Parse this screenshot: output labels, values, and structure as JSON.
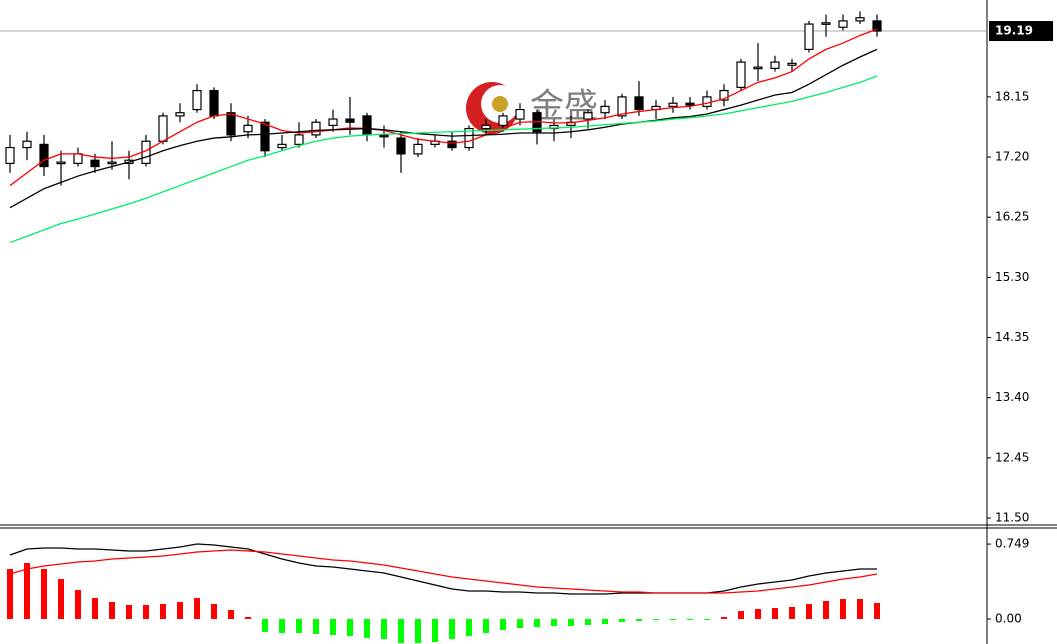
{
  "chart_data": [
    {
      "type": "candlestick",
      "watermark": "金盛",
      "last_price": 19.19,
      "up_color": "#ffffff",
      "down_color": "#000000",
      "open": [
        17.1,
        17.35,
        17.4,
        17.1,
        17.1,
        17.15,
        17.1,
        17.1,
        17.1,
        17.45,
        17.85,
        17.95,
        18.25,
        17.9,
        17.6,
        17.75,
        17.35,
        17.4,
        17.55,
        17.7,
        17.8,
        17.85,
        17.55,
        17.5,
        17.25,
        17.4,
        17.45,
        17.35,
        17.65,
        17.7,
        17.8,
        17.9,
        17.65,
        17.7,
        17.8,
        17.9,
        17.85,
        18.15,
        17.95,
        18.0,
        18.05,
        18.0,
        18.1,
        18.3,
        18.6,
        18.6,
        18.65,
        18.9,
        19.3,
        19.25,
        19.35,
        19.35
      ],
      "high": [
        17.55,
        17.6,
        17.55,
        17.3,
        17.35,
        17.25,
        17.45,
        17.3,
        17.55,
        17.9,
        18.05,
        18.35,
        18.3,
        18.05,
        17.85,
        17.8,
        17.55,
        17.75,
        17.8,
        17.95,
        18.15,
        17.9,
        17.7,
        17.6,
        17.5,
        17.55,
        17.6,
        17.7,
        17.8,
        17.9,
        18.05,
        17.95,
        17.8,
        17.85,
        17.95,
        18.1,
        18.2,
        18.4,
        18.1,
        18.15,
        18.15,
        18.25,
        18.35,
        18.75,
        19.0,
        18.8,
        18.75,
        19.35,
        19.45,
        19.45,
        19.5,
        19.45
      ],
      "low": [
        16.95,
        17.15,
        16.9,
        16.75,
        17.05,
        16.95,
        17.0,
        16.85,
        17.05,
        17.4,
        17.75,
        17.9,
        17.8,
        17.45,
        17.5,
        17.2,
        17.3,
        17.35,
        17.5,
        17.6,
        17.55,
        17.45,
        17.35,
        16.95,
        17.2,
        17.35,
        17.3,
        17.3,
        17.55,
        17.6,
        17.7,
        17.4,
        17.45,
        17.5,
        17.65,
        17.8,
        17.8,
        17.85,
        17.8,
        17.9,
        17.95,
        17.95,
        18.0,
        18.25,
        18.4,
        18.55,
        18.55,
        18.85,
        19.1,
        19.2,
        19.3,
        19.1
      ],
      "close": [
        17.35,
        17.45,
        17.05,
        17.12,
        17.25,
        17.05,
        17.12,
        17.15,
        17.45,
        17.85,
        17.9,
        18.25,
        17.85,
        17.55,
        17.7,
        17.3,
        17.4,
        17.55,
        17.75,
        17.8,
        17.75,
        17.55,
        17.52,
        17.25,
        17.4,
        17.45,
        17.35,
        17.65,
        17.7,
        17.85,
        17.95,
        17.6,
        17.7,
        17.75,
        17.9,
        18.0,
        18.15,
        17.95,
        18.0,
        18.05,
        18.02,
        18.15,
        18.25,
        18.7,
        18.62,
        18.7,
        18.68,
        19.3,
        19.32,
        19.35,
        19.4,
        19.19
      ],
      "series": [
        {
          "color": "#ff0000",
          "values": [
            16.75,
            16.95,
            17.15,
            17.25,
            17.25,
            17.2,
            17.18,
            17.2,
            17.3,
            17.45,
            17.6,
            17.75,
            17.85,
            17.88,
            17.8,
            17.72,
            17.62,
            17.58,
            17.6,
            17.63,
            17.66,
            17.65,
            17.62,
            17.55,
            17.48,
            17.45,
            17.42,
            17.45,
            17.55,
            17.65,
            17.75,
            17.76,
            17.74,
            17.74,
            17.78,
            17.82,
            17.88,
            17.92,
            17.95,
            17.98,
            18.0,
            18.05,
            18.12,
            18.25,
            18.38,
            18.45,
            18.55,
            18.75,
            18.9,
            19.0,
            19.12,
            19.22
          ]
        },
        {
          "color": "#000000",
          "values": [
            16.4,
            16.55,
            16.7,
            16.8,
            16.9,
            16.98,
            17.05,
            17.12,
            17.2,
            17.3,
            17.38,
            17.45,
            17.5,
            17.52,
            17.55,
            17.56,
            17.58,
            17.6,
            17.62,
            17.63,
            17.64,
            17.65,
            17.63,
            17.6,
            17.57,
            17.55,
            17.53,
            17.54,
            17.55,
            17.56,
            17.58,
            17.58,
            17.58,
            17.6,
            17.63,
            17.67,
            17.72,
            17.75,
            17.78,
            17.82,
            17.84,
            17.88,
            17.95,
            18.02,
            18.1,
            18.18,
            18.22,
            18.35,
            18.5,
            18.65,
            18.78,
            18.9
          ]
        },
        {
          "color": "#00ee66",
          "values": [
            15.85,
            15.95,
            16.05,
            16.15,
            16.22,
            16.3,
            16.38,
            16.46,
            16.55,
            16.65,
            16.75,
            16.85,
            16.95,
            17.05,
            17.15,
            17.22,
            17.3,
            17.38,
            17.45,
            17.5,
            17.53,
            17.55,
            17.56,
            17.57,
            17.58,
            17.59,
            17.6,
            17.61,
            17.62,
            17.63,
            17.64,
            17.65,
            17.66,
            17.67,
            17.69,
            17.71,
            17.73,
            17.75,
            17.77,
            17.8,
            17.82,
            17.85,
            17.88,
            17.93,
            17.98,
            18.03,
            18.08,
            18.15,
            18.22,
            18.3,
            18.38,
            18.48
          ]
        }
      ],
      "ylim": [
        11.39,
        19.68
      ],
      "yticks": [
        18.15,
        {
          "value": 17.2,
          "label": "17.20"
        },
        16.25,
        {
          "value": 15.3,
          "label": "15.30"
        },
        14.35,
        {
          "value": 13.4,
          "label": "13.40"
        },
        12.45,
        {
          "value": 11.5,
          "label": "11.50"
        }
      ]
    },
    {
      "type": "macd",
      "histogram": {
        "up_color": "#ff0000",
        "down_color": "#00ff00",
        "values": [
          0.5,
          0.56,
          0.5,
          0.4,
          0.29,
          0.21,
          0.17,
          0.14,
          0.14,
          0.15,
          0.17,
          0.21,
          0.15,
          0.09,
          0.02,
          -0.13,
          -0.14,
          -0.14,
          -0.15,
          -0.16,
          -0.17,
          -0.19,
          -0.2,
          -0.24,
          -0.24,
          -0.23,
          -0.2,
          -0.17,
          -0.14,
          -0.11,
          -0.09,
          -0.08,
          -0.07,
          -0.07,
          -0.06,
          -0.05,
          -0.03,
          -0.02,
          -0.01,
          -0.01,
          -0.01,
          -0.01,
          0.02,
          0.08,
          0.1,
          0.11,
          0.12,
          0.15,
          0.18,
          0.2,
          0.2,
          0.16
        ]
      },
      "series": [
        {
          "color": "#000000",
          "values": [
            0.64,
            0.7,
            0.71,
            0.71,
            0.7,
            0.7,
            0.69,
            0.68,
            0.68,
            0.7,
            0.72,
            0.75,
            0.74,
            0.72,
            0.7,
            0.65,
            0.6,
            0.56,
            0.53,
            0.52,
            0.5,
            0.48,
            0.46,
            0.42,
            0.38,
            0.34,
            0.3,
            0.28,
            0.28,
            0.27,
            0.27,
            0.26,
            0.26,
            0.25,
            0.25,
            0.25,
            0.26,
            0.26,
            0.26,
            0.26,
            0.26,
            0.26,
            0.28,
            0.32,
            0.35,
            0.37,
            0.39,
            0.43,
            0.46,
            0.48,
            0.5,
            0.5
          ]
        },
        {
          "color": "#ff0000",
          "values": [
            0.45,
            0.5,
            0.53,
            0.55,
            0.57,
            0.58,
            0.6,
            0.61,
            0.62,
            0.63,
            0.65,
            0.67,
            0.68,
            0.69,
            0.68,
            0.67,
            0.65,
            0.63,
            0.61,
            0.59,
            0.58,
            0.56,
            0.54,
            0.51,
            0.48,
            0.45,
            0.42,
            0.4,
            0.38,
            0.36,
            0.34,
            0.32,
            0.31,
            0.3,
            0.29,
            0.28,
            0.27,
            0.27,
            0.26,
            0.26,
            0.26,
            0.26,
            0.26,
            0.27,
            0.28,
            0.3,
            0.32,
            0.34,
            0.37,
            0.4,
            0.42,
            0.45
          ]
        }
      ],
      "ylim": [
        -0.25,
        0.9
      ],
      "yticks": [
        0.749,
        {
          "value": 0,
          "label": "0.00"
        }
      ]
    }
  ]
}
